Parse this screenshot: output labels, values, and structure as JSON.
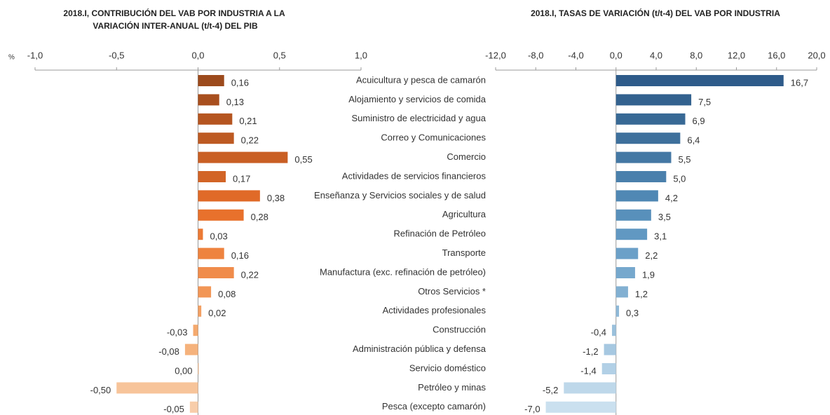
{
  "chart_data": [
    {
      "type": "bar",
      "orientation": "horizontal",
      "title": "2018.I, CONTRIBUCIÓN DEL VAB POR INDUSTRIA A LA VARIACIÓN  INTER-ANUAL (t/t-4) DEL PIB",
      "xlabel": "%",
      "categories": [
        "Acuicultura y pesca de camarón",
        "Alojamiento y servicios de comida",
        "Suministro de electricidad y agua",
        "Correo y Comunicaciones",
        "Comercio",
        "Actividades de servicios financieros",
        "Enseñanza  y Servicios sociales y de salud",
        "Agricultura",
        "Refinación de Petróleo",
        "Transporte",
        "Manufactura (exc. refinación de petróleo)",
        "Otros Servicios *",
        "Actividades profesionales",
        "Construcción",
        "Administración pública y defensa",
        "Servicio doméstico",
        "Petróleo y minas",
        "Pesca (excepto camarón)"
      ],
      "values": [
        0.16,
        0.13,
        0.21,
        0.22,
        0.55,
        0.17,
        0.38,
        0.28,
        0.03,
        0.16,
        0.22,
        0.08,
        0.02,
        -0.03,
        -0.08,
        0.0,
        -0.5,
        -0.05
      ],
      "value_labels": [
        "0,16",
        "0,13",
        "0,21",
        "0,22",
        "0,55",
        "0,17",
        "0,38",
        "0,28",
        "0,03",
        "0,16",
        "0,22",
        "0,08",
        "0,02",
        "-0,03",
        "-0,08",
        "0,00",
        "-0,50",
        "-0,05"
      ],
      "colors": [
        "#9c4a1c",
        "#a84f1e",
        "#b55520",
        "#bd5a22",
        "#c95f24",
        "#d26426",
        "#e06a28",
        "#e8712c",
        "#ec7a35",
        "#ee833f",
        "#f08c4b",
        "#f29656",
        "#f3a062",
        "#f4a96e",
        "#f5b27c",
        "#f6bb8b",
        "#f7c49a",
        "#f8cdaa"
      ],
      "xlim": [
        -1.0,
        1.0
      ],
      "xticks": [
        {
          "value": -1.0,
          "label": "-1,0"
        },
        {
          "value": -0.5,
          "label": "-0,5"
        },
        {
          "value": 0,
          "label": "0,0"
        },
        {
          "value": 0.5,
          "label": "0,5"
        },
        {
          "value": 1.0,
          "label": "1,0"
        }
      ]
    },
    {
      "type": "bar",
      "orientation": "horizontal",
      "title": "2018.I, TASAS DE VARIACIÓN (t/t-4) DEL VAB POR INDUSTRIA",
      "values": [
        16.7,
        7.5,
        6.9,
        6.4,
        5.5,
        5.0,
        4.2,
        3.5,
        3.1,
        2.2,
        1.9,
        1.2,
        0.3,
        -0.4,
        -1.2,
        -1.4,
        -5.2,
        -7.0
      ],
      "value_labels": [
        "16,7",
        "7,5",
        "6,9",
        "6,4",
        "5,5",
        "5,0",
        "4,2",
        "3,5",
        "3,1",
        "2,2",
        "1,9",
        "1,2",
        "0,3",
        "-0,4",
        "-1,2",
        "-1,4",
        "-5,2",
        "-7,0"
      ],
      "colors": [
        "#2e5b8a",
        "#33628f",
        "#386995",
        "#3e709c",
        "#4478a4",
        "#4a80ac",
        "#5088b4",
        "#5890bb",
        "#6198c2",
        "#6ba0c8",
        "#76a8cd",
        "#82b0d2",
        "#8eb8d7",
        "#9ac0dc",
        "#a6c8e1",
        "#b2d0e6",
        "#bed8ea",
        "#cae0ef"
      ],
      "xlim": [
        -12,
        20
      ],
      "xticks": [
        {
          "value": -12,
          "label": "-12,0"
        },
        {
          "value": -8,
          "label": "-8,0"
        },
        {
          "value": -4,
          "label": "-4,0"
        },
        {
          "value": 0,
          "label": "0,0"
        },
        {
          "value": 4,
          "label": "4,0"
        },
        {
          "value": 8,
          "label": "8,0"
        },
        {
          "value": 12,
          "label": "12,0"
        },
        {
          "value": 16,
          "label": "16,0"
        },
        {
          "value": 20,
          "label": "20,0"
        }
      ]
    }
  ]
}
